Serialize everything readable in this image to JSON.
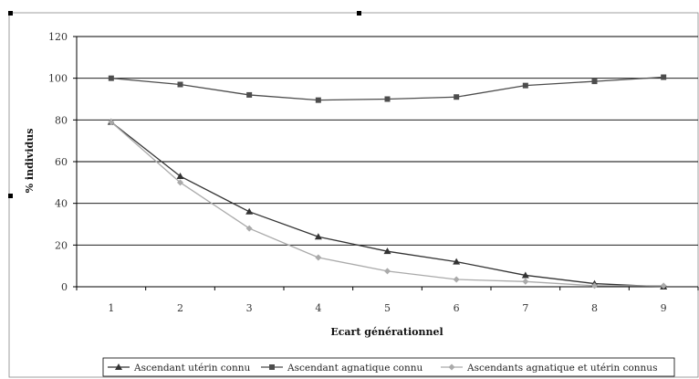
{
  "chart_data": {
    "type": "line",
    "xlabel": "Ecart générationnel",
    "ylabel": "% individus",
    "x": [
      1,
      2,
      3,
      4,
      5,
      6,
      7,
      8,
      9
    ],
    "ylim": [
      0,
      120
    ],
    "yticks": [
      0,
      20,
      40,
      60,
      80,
      100,
      120
    ],
    "grid": true,
    "legend_position": "bottom",
    "series": [
      {
        "name": "Ascendant utérin connu",
        "marker": "triangle",
        "color": "#333333",
        "values": [
          79,
          53,
          36,
          24,
          17,
          12,
          5.5,
          1.5,
          0
        ]
      },
      {
        "name": "Ascendant agnatique connu",
        "marker": "square",
        "color": "#4d4d4d",
        "values": [
          100,
          97,
          92,
          89.5,
          90,
          91,
          96.5,
          98.5,
          100.5
        ]
      },
      {
        "name": "Ascendants agnatique et utérin connus",
        "marker": "diamond",
        "color": "#aaaaaa",
        "values": [
          79,
          50,
          28,
          14,
          7.5,
          3.5,
          2.5,
          0.5,
          0.5
        ]
      }
    ]
  }
}
